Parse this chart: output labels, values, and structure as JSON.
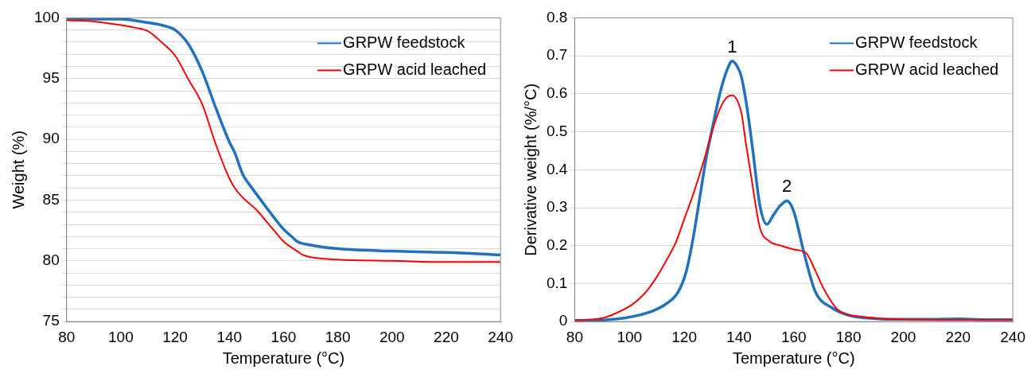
{
  "chart_data": [
    {
      "type": "line",
      "xlabel": "Temperature (°C)",
      "ylabel": "Weight (%)",
      "xlim": [
        80,
        240
      ],
      "xticks": [
        80,
        100,
        120,
        140,
        160,
        180,
        200,
        220,
        240
      ],
      "ylim": [
        75,
        100
      ],
      "yticks": [
        75,
        {
          "value": 76,
          "label": null
        },
        {
          "value": 77,
          "label": null
        },
        {
          "value": 78,
          "label": null
        },
        {
          "value": 79,
          "label": null
        },
        80,
        {
          "value": 81,
          "label": null
        },
        {
          "value": 82,
          "label": null
        },
        {
          "value": 83,
          "label": null
        },
        {
          "value": 84,
          "label": null
        },
        85,
        {
          "value": 86,
          "label": null
        },
        {
          "value": 87,
          "label": null
        },
        {
          "value": 88,
          "label": null
        },
        {
          "value": 89,
          "label": null
        },
        90,
        {
          "value": 91,
          "label": null
        },
        {
          "value": 92,
          "label": null
        },
        {
          "value": 93,
          "label": null
        },
        {
          "value": 94,
          "label": null
        },
        95,
        {
          "value": 96,
          "label": null
        },
        {
          "value": 97,
          "label": null
        },
        {
          "value": 98,
          "label": null
        },
        {
          "value": 99,
          "label": null
        },
        100
      ],
      "grid": "y",
      "legend": "top right",
      "marker": "none",
      "line_style": "solid",
      "series": [
        {
          "name": "GRPW feedstock",
          "color": "#2072c0",
          "x": [
            80,
            100,
            110,
            115,
            120,
            125,
            130,
            135,
            140,
            142,
            145,
            147,
            150,
            155,
            160,
            163,
            165,
            170,
            180,
            200,
            220,
            240
          ],
          "values": [
            99.9,
            99.9,
            99.6,
            99.4,
            99.0,
            97.8,
            95.6,
            92.6,
            89.8,
            88.9,
            87.1,
            86.4,
            85.5,
            84.0,
            82.6,
            82.0,
            81.6,
            81.3,
            81.0,
            80.8,
            80.7,
            80.5
          ]
        },
        {
          "name": "GRPW acid leached",
          "color": "#ff0000",
          "x": [
            80,
            90,
            100,
            105,
            110,
            115,
            120,
            125,
            130,
            135,
            140,
            142,
            145,
            150,
            155,
            160,
            165,
            167,
            170,
            180,
            200,
            220,
            240
          ],
          "values": [
            99.8,
            99.7,
            99.4,
            99.2,
            98.9,
            98.0,
            96.9,
            94.9,
            92.9,
            89.6,
            86.8,
            86.0,
            85.2,
            84.2,
            82.9,
            81.6,
            80.8,
            80.5,
            80.3,
            80.1,
            80.0,
            79.9,
            79.9
          ]
        }
      ]
    },
    {
      "type": "line",
      "xlabel": "Temperature (°C)",
      "ylabel": "Derivative weight (%/°C)",
      "xlim": [
        80,
        240
      ],
      "xticks": [
        80,
        100,
        120,
        140,
        160,
        180,
        200,
        220,
        240
      ],
      "ylim": [
        0,
        0.8
      ],
      "yticks": [
        0,
        0.1,
        0.2,
        0.3,
        0.4,
        0.5,
        0.6,
        0.7,
        0.8
      ],
      "grid": "y",
      "legend": "top right",
      "marker": "none",
      "line_style": "solid",
      "annotations": [
        {
          "text": "1",
          "x": 137.5,
          "y": 0.686
        },
        {
          "text": "2",
          "x": 157.5,
          "y": 0.318
        }
      ],
      "series": [
        {
          "name": "GRPW feedstock",
          "color": "#2072c0",
          "x": [
            80,
            90,
            98.5,
            104,
            108.8,
            113,
            117.6,
            120.7,
            123,
            125.3,
            128,
            130,
            133,
            135.5,
            137.5,
            139.5,
            140.9,
            143,
            145,
            147.6,
            150.2,
            152.5,
            155,
            157.5,
            160,
            163.7,
            167.8,
            174,
            181,
            190,
            200,
            210,
            220,
            230,
            240
          ],
          "values": [
            0.003,
            0.004,
            0.01,
            0.018,
            0.029,
            0.045,
            0.076,
            0.131,
            0.21,
            0.31,
            0.43,
            0.5,
            0.6,
            0.66,
            0.686,
            0.67,
            0.644,
            0.56,
            0.453,
            0.307,
            0.256,
            0.28,
            0.305,
            0.318,
            0.29,
            0.182,
            0.08,
            0.036,
            0.015,
            0.008,
            0.006,
            0.006,
            0.007,
            0.005,
            0.005
          ]
        },
        {
          "name": "GRPW acid leached",
          "color": "#ff0000",
          "x": [
            80,
            90.6,
            95,
            100.6,
            105,
            108.8,
            113,
            117.1,
            120,
            123.3,
            127,
            130,
            133,
            135.5,
            137.5,
            139.5,
            140.9,
            142.5,
            144.5,
            147.6,
            151,
            155.3,
            160,
            164.7,
            167.5,
            170.9,
            176,
            186,
            200,
            220,
            240
          ],
          "values": [
            0.003,
            0.01,
            0.022,
            0.043,
            0.07,
            0.105,
            0.155,
            0.212,
            0.27,
            0.336,
            0.42,
            0.497,
            0.56,
            0.59,
            0.596,
            0.58,
            0.549,
            0.47,
            0.38,
            0.248,
            0.212,
            0.2,
            0.19,
            0.179,
            0.14,
            0.087,
            0.032,
            0.012,
            0.006,
            0.004,
            0.004
          ]
        }
      ]
    }
  ]
}
